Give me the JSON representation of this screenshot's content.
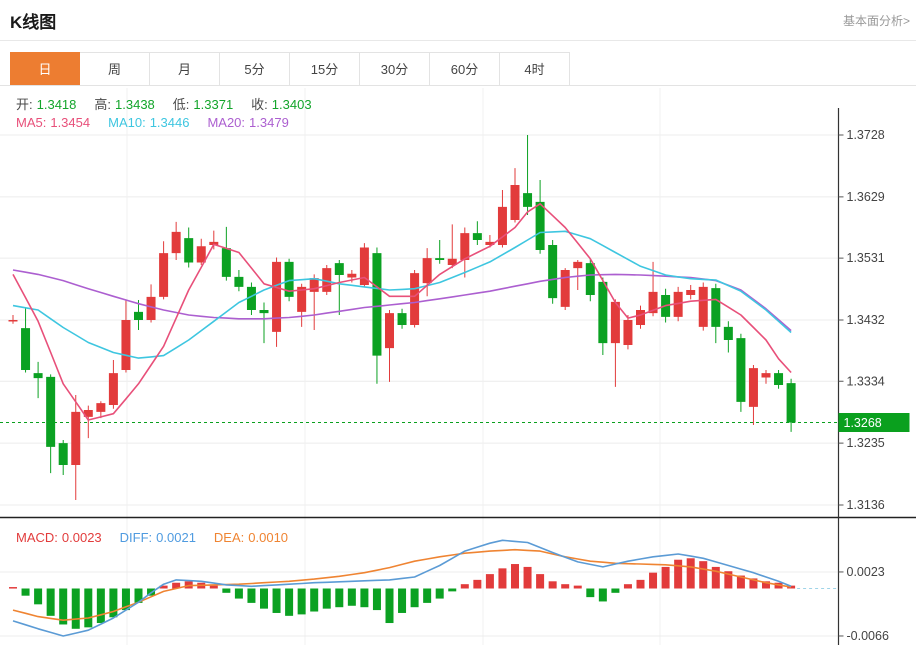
{
  "header": {
    "title": "K线图",
    "link": "基本面分析>"
  },
  "toolbar": {
    "tabs": [
      "日",
      "周",
      "月",
      "5分",
      "15分",
      "30分",
      "60分",
      "4时"
    ],
    "active_tab": "日",
    "active_color": "#ed7d31"
  },
  "overlay": {
    "ohlc": {
      "label_color": "#4a4a4a",
      "value_color": "#13a52b",
      "items": [
        {
          "label": "开:",
          "value": "1.3418"
        },
        {
          "label": "高:",
          "value": "1.3438"
        },
        {
          "label": "低:",
          "value": "1.3371"
        },
        {
          "label": "收:",
          "value": "1.3403"
        }
      ]
    },
    "ma": {
      "items": [
        {
          "label": "MA5:",
          "value": "1.3454",
          "color": "#e8507a"
        },
        {
          "label": "MA10:",
          "value": "1.3446",
          "color": "#3ec6e0"
        },
        {
          "label": "MA20:",
          "value": "1.3479",
          "color": "#ac5fd0"
        }
      ]
    },
    "macd": {
      "items": [
        {
          "label": "MACD:",
          "value": "0.0023",
          "color": "#e23c3c"
        },
        {
          "label": "DIFF:",
          "value": "0.0021",
          "color": "#4f9be0"
        },
        {
          "label": "DEA:",
          "value": "0.0010",
          "color": "#ef8432"
        }
      ]
    }
  },
  "axis": {
    "main_labels": [
      1.3728,
      1.3629,
      1.3531,
      1.3432,
      1.3334,
      1.3235,
      1.3136
    ],
    "macd_labels": [
      0.0023,
      -0.0066
    ],
    "current_price": 1.3268
  },
  "chart_data": {
    "type": "candlestick",
    "up_color": "#e23b3b",
    "down_color": "#0ba122",
    "legend": [
      "MA5",
      "MA10",
      "MA20",
      "MACD",
      "DIFF",
      "DEA"
    ],
    "current_price": 1.3268,
    "price_range": [
      1.3136,
      1.3728
    ],
    "candles": [
      [
        1.3432,
        1.344,
        1.3426,
        1.3432
      ],
      [
        1.3419,
        1.3451,
        1.3348,
        1.3352
      ],
      [
        1.3347,
        1.3365,
        1.3307,
        1.3339
      ],
      [
        1.3341,
        1.3345,
        1.3187,
        1.3229
      ],
      [
        1.3235,
        1.324,
        1.3184,
        1.32
      ],
      [
        1.32,
        1.3312,
        1.3144,
        1.3285
      ],
      [
        1.3277,
        1.3295,
        1.3243,
        1.3288
      ],
      [
        1.3285,
        1.3302,
        1.3275,
        1.3299
      ],
      [
        1.3296,
        1.3368,
        1.329,
        1.3347
      ],
      [
        1.3352,
        1.3464,
        1.3348,
        1.3432
      ],
      [
        1.3445,
        1.3464,
        1.3416,
        1.3432
      ],
      [
        1.3432,
        1.3489,
        1.3428,
        1.3469
      ],
      [
        1.3469,
        1.3558,
        1.3465,
        1.3539
      ],
      [
        1.3539,
        1.3589,
        1.3528,
        1.3573
      ],
      [
        1.3563,
        1.358,
        1.3516,
        1.3524
      ],
      [
        1.3524,
        1.3562,
        1.352,
        1.355
      ],
      [
        1.3552,
        1.3575,
        1.3545,
        1.3557
      ],
      [
        1.3547,
        1.3581,
        1.3495,
        1.3501
      ],
      [
        1.3501,
        1.3512,
        1.3478,
        1.3485
      ],
      [
        1.3485,
        1.3492,
        1.344,
        1.3448
      ],
      [
        1.3448,
        1.346,
        1.3395,
        1.3443
      ],
      [
        1.3413,
        1.3532,
        1.3389,
        1.3525
      ],
      [
        1.3525,
        1.353,
        1.3462,
        1.3469
      ],
      [
        1.3445,
        1.349,
        1.3421,
        1.3485
      ],
      [
        1.3477,
        1.3505,
        1.3416,
        1.3499
      ],
      [
        1.3477,
        1.352,
        1.3472,
        1.3515
      ],
      [
        1.3523,
        1.3528,
        1.344,
        1.3504
      ],
      [
        1.35,
        1.3512,
        1.3492,
        1.3506
      ],
      [
        1.3488,
        1.3555,
        1.3484,
        1.3548
      ],
      [
        1.3539,
        1.3548,
        1.333,
        1.3375
      ],
      [
        1.3387,
        1.3448,
        1.3333,
        1.3443
      ],
      [
        1.3443,
        1.345,
        1.3418,
        1.3424
      ],
      [
        1.3424,
        1.3512,
        1.342,
        1.3507
      ],
      [
        1.3491,
        1.3547,
        1.347,
        1.3531
      ],
      [
        1.3531,
        1.356,
        1.3522,
        1.3528
      ],
      [
        1.352,
        1.3585,
        1.3515,
        1.353
      ],
      [
        1.3528,
        1.358,
        1.35,
        1.3571
      ],
      [
        1.3571,
        1.359,
        1.3552,
        1.356
      ],
      [
        1.3552,
        1.3568,
        1.3548,
        1.3557
      ],
      [
        1.3552,
        1.364,
        1.3548,
        1.3613
      ],
      [
        1.3592,
        1.3675,
        1.3588,
        1.3648
      ],
      [
        1.3635,
        1.3728,
        1.36,
        1.3613
      ],
      [
        1.3621,
        1.3656,
        1.3538,
        1.3544
      ],
      [
        1.3552,
        1.356,
        1.3458,
        1.3467
      ],
      [
        1.3453,
        1.3515,
        1.3448,
        1.3512
      ],
      [
        1.3515,
        1.3528,
        1.348,
        1.3525
      ],
      [
        1.3523,
        1.353,
        1.3462,
        1.3472
      ],
      [
        1.3493,
        1.35,
        1.3376,
        1.3395
      ],
      [
        1.3395,
        1.3465,
        1.3325,
        1.3461
      ],
      [
        1.3392,
        1.344,
        1.3385,
        1.3432
      ],
      [
        1.3424,
        1.3455,
        1.3418,
        1.3448
      ],
      [
        1.3443,
        1.3525,
        1.3438,
        1.3477
      ],
      [
        1.3472,
        1.3482,
        1.3428,
        1.3437
      ],
      [
        1.3437,
        1.3485,
        1.343,
        1.3477
      ],
      [
        1.3472,
        1.3488,
        1.3465,
        1.348
      ],
      [
        1.3421,
        1.3492,
        1.3415,
        1.3485
      ],
      [
        1.3483,
        1.349,
        1.3395,
        1.3421
      ],
      [
        1.3421,
        1.343,
        1.338,
        1.34
      ],
      [
        1.3403,
        1.341,
        1.3285,
        1.3301
      ],
      [
        1.3293,
        1.336,
        1.3264,
        1.3355
      ],
      [
        1.334,
        1.3352,
        1.333,
        1.3347
      ],
      [
        1.3347,
        1.3352,
        1.3322,
        1.3328
      ],
      [
        1.3331,
        1.3338,
        1.3253,
        1.3268
      ]
    ],
    "ma5_points": [
      [
        0,
        1.3505
      ],
      [
        2,
        1.343
      ],
      [
        4,
        1.333
      ],
      [
        6,
        1.3272
      ],
      [
        8,
        1.3282
      ],
      [
        10,
        1.333
      ],
      [
        12,
        1.339
      ],
      [
        14,
        1.348
      ],
      [
        16,
        1.3553
      ],
      [
        18,
        1.354
      ],
      [
        20,
        1.349
      ],
      [
        22,
        1.3478
      ],
      [
        24,
        1.3482
      ],
      [
        26,
        1.3492
      ],
      [
        28,
        1.35
      ],
      [
        30,
        1.347
      ],
      [
        32,
        1.347
      ],
      [
        34,
        1.3505
      ],
      [
        36,
        1.353
      ],
      [
        38,
        1.355
      ],
      [
        40,
        1.358
      ],
      [
        41,
        1.3605
      ],
      [
        42,
        1.3618
      ],
      [
        44,
        1.358
      ],
      [
        46,
        1.353
      ],
      [
        47,
        1.3495
      ],
      [
        48,
        1.346
      ],
      [
        49,
        1.3435
      ],
      [
        50,
        1.344
      ],
      [
        52,
        1.3455
      ],
      [
        54,
        1.3462
      ],
      [
        56,
        1.3465
      ],
      [
        58,
        1.344
      ],
      [
        60,
        1.34
      ],
      [
        61,
        1.337
      ],
      [
        62,
        1.3348
      ]
    ],
    "ma10_points": [
      [
        0,
        1.3455
      ],
      [
        2,
        1.3448
      ],
      [
        4,
        1.342
      ],
      [
        6,
        1.3396
      ],
      [
        8,
        1.338
      ],
      [
        10,
        1.3371
      ],
      [
        12,
        1.3375
      ],
      [
        14,
        1.34
      ],
      [
        16,
        1.343
      ],
      [
        18,
        1.346
      ],
      [
        20,
        1.348
      ],
      [
        22,
        1.3495
      ],
      [
        24,
        1.3498
      ],
      [
        26,
        1.349
      ],
      [
        28,
        1.3485
      ],
      [
        30,
        1.348
      ],
      [
        32,
        1.3482
      ],
      [
        34,
        1.3492
      ],
      [
        36,
        1.3508
      ],
      [
        38,
        1.3525
      ],
      [
        40,
        1.3548
      ],
      [
        42,
        1.3572
      ],
      [
        44,
        1.3574
      ],
      [
        46,
        1.3562
      ],
      [
        48,
        1.354
      ],
      [
        50,
        1.3518
      ],
      [
        52,
        1.3504
      ],
      [
        54,
        1.3498
      ],
      [
        56,
        1.3496
      ],
      [
        58,
        1.3478
      ],
      [
        60,
        1.3448
      ],
      [
        62,
        1.3412
      ]
    ],
    "ma20_points": [
      [
        0,
        1.3512
      ],
      [
        2,
        1.3505
      ],
      [
        4,
        1.3495
      ],
      [
        6,
        1.3482
      ],
      [
        8,
        1.347
      ],
      [
        10,
        1.3458
      ],
      [
        12,
        1.3448
      ],
      [
        14,
        1.344
      ],
      [
        16,
        1.3436
      ],
      [
        18,
        1.3434
      ],
      [
        20,
        1.3434
      ],
      [
        22,
        1.3436
      ],
      [
        24,
        1.344
      ],
      [
        26,
        1.3446
      ],
      [
        28,
        1.3452
      ],
      [
        30,
        1.3456
      ],
      [
        32,
        1.346
      ],
      [
        34,
        1.3466
      ],
      [
        36,
        1.3472
      ],
      [
        38,
        1.3478
      ],
      [
        40,
        1.3486
      ],
      [
        42,
        1.3494
      ],
      [
        44,
        1.35
      ],
      [
        46,
        1.3504
      ],
      [
        48,
        1.3505
      ],
      [
        50,
        1.3504
      ],
      [
        52,
        1.3502
      ],
      [
        54,
        1.35
      ],
      [
        56,
        1.3495
      ],
      [
        58,
        1.348
      ],
      [
        60,
        1.345
      ],
      [
        62,
        1.3415
      ]
    ],
    "macd": {
      "hist": [
        0.0002,
        -0.001,
        -0.0022,
        -0.0038,
        -0.005,
        -0.0056,
        -0.0054,
        -0.0048,
        -0.004,
        -0.003,
        -0.002,
        -0.001,
        0.0004,
        0.0008,
        0.001,
        0.0008,
        0.0004,
        -0.0006,
        -0.0014,
        -0.002,
        -0.0028,
        -0.0034,
        -0.0038,
        -0.0036,
        -0.0032,
        -0.0028,
        -0.0026,
        -0.0024,
        -0.0026,
        -0.003,
        -0.0048,
        -0.0034,
        -0.0026,
        -0.002,
        -0.0014,
        -0.0004,
        0.0006,
        0.0012,
        0.002,
        0.0028,
        0.0034,
        0.003,
        0.002,
        0.001,
        0.0006,
        0.0004,
        -0.0012,
        -0.0018,
        -0.0006,
        0.0006,
        0.0012,
        0.0022,
        0.003,
        0.004,
        0.0042,
        0.0038,
        0.003,
        0.0024,
        0.0018,
        0.0014,
        0.001,
        0.0008,
        0.0004
      ],
      "diff_points": [
        [
          0,
          -0.0045
        ],
        [
          2,
          -0.0056
        ],
        [
          4,
          -0.0066
        ],
        [
          6,
          -0.0058
        ],
        [
          8,
          -0.0041
        ],
        [
          10,
          -0.0019
        ],
        [
          11,
          -0.0006
        ],
        [
          12,
          0.0006
        ],
        [
          13,
          0.0012
        ],
        [
          15,
          0.001
        ],
        [
          17,
          0.0005
        ],
        [
          19,
          0.0003
        ],
        [
          21,
          0.0005
        ],
        [
          24,
          0.0008
        ],
        [
          27,
          0.001
        ],
        [
          30,
          0.0012
        ],
        [
          32,
          0.0016
        ],
        [
          34,
          0.0032
        ],
        [
          36,
          0.0052
        ],
        [
          38,
          0.0063
        ],
        [
          39,
          0.0067
        ],
        [
          41,
          0.0064
        ],
        [
          43,
          0.005
        ],
        [
          45,
          0.0037
        ],
        [
          47,
          0.003
        ],
        [
          49,
          0.0038
        ],
        [
          51,
          0.0044
        ],
        [
          53,
          0.0048
        ],
        [
          55,
          0.0042
        ],
        [
          57,
          0.0032
        ],
        [
          59,
          0.0022
        ],
        [
          61,
          0.001
        ],
        [
          62,
          0.0003
        ]
      ],
      "dea_points": [
        [
          0,
          -0.003
        ],
        [
          2,
          -0.0039
        ],
        [
          4,
          -0.0044
        ],
        [
          6,
          -0.0041
        ],
        [
          8,
          -0.0032
        ],
        [
          10,
          -0.0019
        ],
        [
          12,
          -0.0004
        ],
        [
          14,
          0.0004
        ],
        [
          16,
          0.0005
        ],
        [
          18,
          0.0006
        ],
        [
          20,
          0.0008
        ],
        [
          22,
          0.001
        ],
        [
          24,
          0.0013
        ],
        [
          26,
          0.0017
        ],
        [
          28,
          0.0022
        ],
        [
          30,
          0.0029
        ],
        [
          32,
          0.0038
        ],
        [
          34,
          0.0044
        ],
        [
          36,
          0.0049
        ],
        [
          38,
          0.0052
        ],
        [
          40,
          0.0054
        ],
        [
          42,
          0.0052
        ],
        [
          44,
          0.0044
        ],
        [
          46,
          0.0038
        ],
        [
          48,
          0.0035
        ],
        [
          50,
          0.0034
        ],
        [
          52,
          0.0033
        ],
        [
          54,
          0.003
        ],
        [
          56,
          0.0024
        ],
        [
          58,
          0.0016
        ],
        [
          60,
          0.0008
        ],
        [
          62,
          0.0002
        ]
      ]
    }
  }
}
